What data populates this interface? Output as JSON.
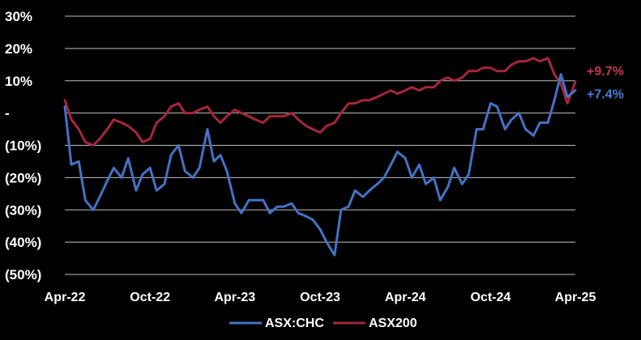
{
  "chart_data": {
    "type": "line",
    "title": "",
    "xlabel": "",
    "ylabel": "",
    "y_ticks": [
      {
        "value": 30,
        "label": "30%"
      },
      {
        "value": 20,
        "label": "20%"
      },
      {
        "value": 10,
        "label": "10%"
      },
      {
        "value": 0,
        "label": "-"
      },
      {
        "value": -10,
        "label": "(10%)"
      },
      {
        "value": -20,
        "label": "(20%)"
      },
      {
        "value": -30,
        "label": "(30%)"
      },
      {
        "value": -40,
        "label": "(40%)"
      },
      {
        "value": -50,
        "label": "(50%)"
      }
    ],
    "ylim": [
      -50,
      30
    ],
    "x_ticks": [
      {
        "date": "2022-04-01",
        "label": "Apr-22"
      },
      {
        "date": "2022-10-01",
        "label": "Oct-22"
      },
      {
        "date": "2023-04-01",
        "label": "Apr-23"
      },
      {
        "date": "2023-10-01",
        "label": "Oct-23"
      },
      {
        "date": "2024-04-01",
        "label": "Apr-24"
      },
      {
        "date": "2024-10-01",
        "label": "Oct-24"
      },
      {
        "date": "2025-04-01",
        "label": "Apr-25"
      }
    ],
    "xlim": [
      "2022-04-01",
      "2025-04-01"
    ],
    "grid": true,
    "legend": "bottom-center",
    "end_labels": [
      {
        "series": "ASX200",
        "text": "+9.7%"
      },
      {
        "series": "ASX:CHC",
        "text": "+7.4%"
      }
    ],
    "series": [
      {
        "name": "ASX:CHC",
        "color": "#4472c4",
        "x": [
          "2022-04-01",
          "2022-04-15",
          "2022-05-01",
          "2022-05-15",
          "2022-06-01",
          "2022-06-15",
          "2022-07-01",
          "2022-07-15",
          "2022-08-01",
          "2022-08-15",
          "2022-09-01",
          "2022-09-15",
          "2022-10-01",
          "2022-10-15",
          "2022-11-01",
          "2022-11-15",
          "2022-12-01",
          "2022-12-15",
          "2023-01-01",
          "2023-01-15",
          "2023-02-01",
          "2023-02-15",
          "2023-03-01",
          "2023-03-15",
          "2023-04-01",
          "2023-04-15",
          "2023-05-01",
          "2023-05-15",
          "2023-06-01",
          "2023-06-15",
          "2023-07-01",
          "2023-07-15",
          "2023-08-01",
          "2023-08-15",
          "2023-09-01",
          "2023-09-15",
          "2023-10-01",
          "2023-10-15",
          "2023-11-01",
          "2023-11-15",
          "2023-12-01",
          "2023-12-15",
          "2024-01-01",
          "2024-01-15",
          "2024-02-01",
          "2024-02-15",
          "2024-03-01",
          "2024-03-15",
          "2024-04-01",
          "2024-04-15",
          "2024-05-01",
          "2024-05-15",
          "2024-06-01",
          "2024-06-15",
          "2024-07-01",
          "2024-07-15",
          "2024-08-01",
          "2024-08-15",
          "2024-09-01",
          "2024-09-15",
          "2024-10-01",
          "2024-10-15",
          "2024-11-01",
          "2024-11-15",
          "2024-12-01",
          "2024-12-15",
          "2025-01-01",
          "2025-01-15",
          "2025-02-01",
          "2025-02-15",
          "2025-03-01",
          "2025-03-15",
          "2025-04-01"
        ],
        "values": [
          2,
          -16,
          -15,
          -27,
          -30,
          -26,
          -21,
          -17,
          -20,
          -14,
          -24,
          -19,
          -17,
          -24,
          -22,
          -13,
          -10,
          -18,
          -20,
          -17,
          -5,
          -15,
          -13,
          -18,
          -28,
          -31,
          -27,
          -27,
          -27,
          -31,
          -29,
          -29,
          -28,
          -31,
          -32,
          -33,
          -36,
          -40,
          -44,
          -30,
          -29,
          -24,
          -26,
          -24,
          -22,
          -20,
          -16,
          -12,
          -14,
          -20,
          -16,
          -22,
          -20,
          -27,
          -23,
          -17,
          -22,
          -19,
          -5,
          -5,
          3,
          2,
          -5,
          -2,
          0,
          -5,
          -7,
          -3,
          -3,
          4,
          12,
          5,
          7
        ]
      },
      {
        "name": "ASX200",
        "color": "#a5273b",
        "x": [
          "2022-04-01",
          "2022-04-15",
          "2022-05-01",
          "2022-05-15",
          "2022-06-01",
          "2022-06-15",
          "2022-07-01",
          "2022-07-15",
          "2022-08-01",
          "2022-08-15",
          "2022-09-01",
          "2022-09-15",
          "2022-10-01",
          "2022-10-15",
          "2022-11-01",
          "2022-11-15",
          "2022-12-01",
          "2022-12-15",
          "2023-01-01",
          "2023-01-15",
          "2023-02-01",
          "2023-02-15",
          "2023-03-01",
          "2023-03-15",
          "2023-04-01",
          "2023-04-15",
          "2023-05-01",
          "2023-05-15",
          "2023-06-01",
          "2023-06-15",
          "2023-07-01",
          "2023-07-15",
          "2023-08-01",
          "2023-08-15",
          "2023-09-01",
          "2023-09-15",
          "2023-10-01",
          "2023-10-15",
          "2023-11-01",
          "2023-11-15",
          "2023-12-01",
          "2023-12-15",
          "2024-01-01",
          "2024-01-15",
          "2024-02-01",
          "2024-02-15",
          "2024-03-01",
          "2024-03-15",
          "2024-04-01",
          "2024-04-15",
          "2024-05-01",
          "2024-05-15",
          "2024-06-01",
          "2024-06-15",
          "2024-07-01",
          "2024-07-15",
          "2024-08-01",
          "2024-08-15",
          "2024-09-01",
          "2024-09-15",
          "2024-10-01",
          "2024-10-15",
          "2024-11-01",
          "2024-11-15",
          "2024-12-01",
          "2024-12-15",
          "2025-01-01",
          "2025-01-15",
          "2025-02-01",
          "2025-02-15",
          "2025-03-01",
          "2025-03-15",
          "2025-04-01"
        ],
        "values": [
          4,
          -2,
          -5,
          -9,
          -10,
          -8,
          -5,
          -2,
          -3,
          -4,
          -6,
          -9,
          -8,
          -3,
          -1,
          2,
          3,
          0,
          0,
          1,
          2,
          -1,
          -3,
          -1,
          1,
          0,
          -1,
          -2,
          -3,
          -1,
          -1,
          -1,
          0,
          -2,
          -4,
          -5,
          -6,
          -4,
          -3,
          0,
          3,
          3,
          4,
          4,
          5,
          6,
          7,
          6,
          7,
          8,
          7,
          8,
          8,
          10,
          11,
          10,
          11,
          13,
          13,
          14,
          14,
          13,
          13,
          15,
          16,
          16,
          17,
          16,
          17,
          12,
          9,
          3,
          9.7
        ]
      }
    ]
  }
}
